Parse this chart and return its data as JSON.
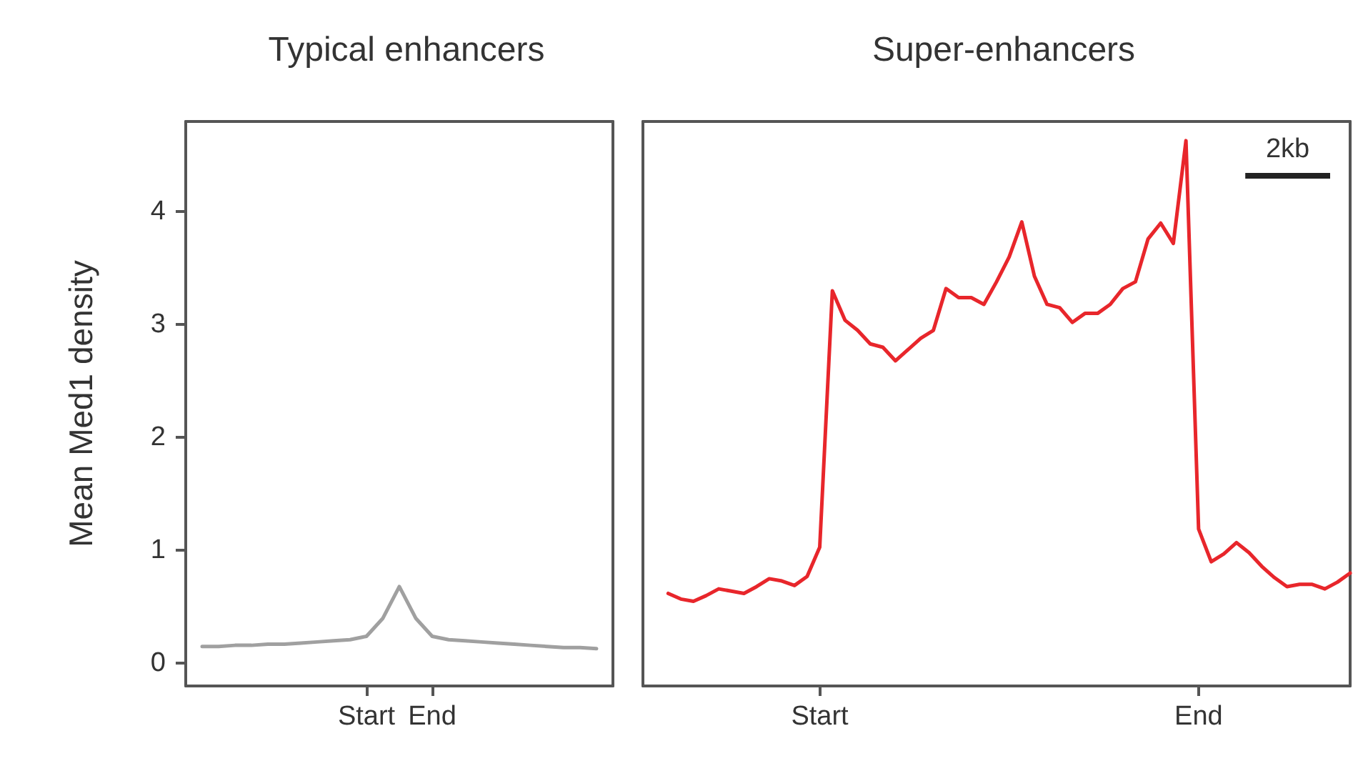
{
  "chart_data": [
    {
      "type": "line",
      "title": "Typical enhancers",
      "ylabel": "Mean Med1 density",
      "categories": [
        null,
        null,
        null,
        null,
        null,
        null,
        null,
        null,
        null,
        null,
        null,
        "Start",
        null,
        null,
        null,
        "End",
        null,
        null,
        null,
        null,
        null,
        null,
        null,
        null,
        null,
        null,
        null
      ],
      "ylim": [
        -0.2,
        4.8
      ],
      "yticks": [
        0,
        1,
        2,
        3,
        4
      ],
      "marker": "none",
      "series": [
        {
          "color": "#a0a0a0",
          "values": [
            null,
            0.15,
            0.15,
            0.16,
            0.16,
            0.17,
            0.17,
            0.18,
            0.19,
            0.2,
            0.21,
            0.24,
            0.4,
            0.68,
            0.4,
            0.24,
            0.21,
            0.2,
            0.19,
            0.18,
            0.17,
            0.16,
            0.15,
            0.14,
            0.14,
            0.13,
            null
          ]
        }
      ]
    },
    {
      "type": "line",
      "title": "Super-enhancers",
      "categories": [
        null,
        null,
        null,
        null,
        null,
        null,
        null,
        null,
        null,
        null,
        null,
        null,
        null,
        null,
        "Start",
        null,
        null,
        null,
        null,
        null,
        null,
        null,
        null,
        null,
        null,
        null,
        null,
        null,
        null,
        null,
        null,
        null,
        null,
        null,
        null,
        null,
        null,
        null,
        null,
        null,
        null,
        null,
        null,
        null,
        "End",
        null,
        null,
        null,
        null,
        null,
        null,
        null,
        null,
        null,
        null,
        null,
        null
      ],
      "ylim": [
        -0.2,
        4.8
      ],
      "tick_labels": "x",
      "marker": "none",
      "annotations": [
        "2kb"
      ],
      "series": [
        {
          "color": "#e8262b",
          "values": [
            null,
            null,
            0.62,
            0.57,
            0.55,
            0.6,
            0.66,
            0.64,
            0.62,
            0.68,
            0.75,
            0.73,
            0.69,
            0.77,
            1.03,
            3.3,
            3.04,
            2.95,
            2.83,
            2.8,
            2.68,
            2.78,
            2.88,
            2.95,
            3.32,
            3.24,
            3.24,
            3.18,
            3.38,
            3.6,
            3.91,
            3.43,
            3.18,
            3.15,
            3.02,
            3.1,
            3.1,
            3.18,
            3.32,
            3.38,
            3.76,
            3.9,
            3.72,
            4.63,
            1.19,
            0.9,
            0.97,
            1.07,
            0.98,
            0.86,
            0.76,
            0.68,
            0.7,
            0.7,
            0.66,
            0.72,
            0.8
          ]
        }
      ]
    }
  ]
}
